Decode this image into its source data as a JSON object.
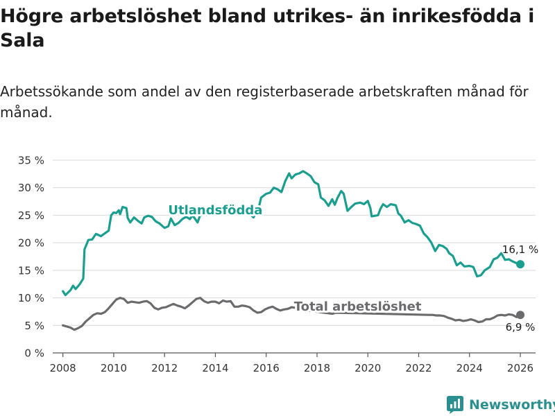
{
  "title": "Högre arbetslöshet bland utrikes- än inrikesfödda i Sala",
  "subtitle": "Arbetssökande som andel av den registerbaserade arbetskraften månad för månad.",
  "logo": {
    "text": "Newsworthy",
    "icon": "newsworthy-logo-icon"
  },
  "colors": {
    "utrikes": "#1a9e8f",
    "total": "#6b6b6e",
    "grid": "#d9d9d9",
    "axis": "#555555",
    "brand": "#2b8f8f"
  },
  "chart_data": {
    "type": "line",
    "title": "Högre arbetslöshet bland utrikes- än inrikesfödda i Sala",
    "xlabel": "",
    "ylabel": "",
    "xlim": [
      2007.6,
      2026.6
    ],
    "ylim": [
      0,
      35
    ],
    "grid": true,
    "x_ticks": [
      2008,
      2010,
      2012,
      2014,
      2016,
      2018,
      2020,
      2022,
      2024,
      2026
    ],
    "x_tick_labels": [
      "2008",
      "2010",
      "2012",
      "2014",
      "2016",
      "2018",
      "2020",
      "2022",
      "2024",
      "2026"
    ],
    "y_ticks": [
      0,
      5,
      10,
      15,
      20,
      25,
      30,
      35
    ],
    "y_tick_labels": [
      "0 %",
      "5 %",
      "10 %",
      "15 %",
      "20 %",
      "25 %",
      "30 %",
      "35 %"
    ],
    "series": [
      {
        "name": "Utlandsfödda",
        "label": "Utlandsfödda",
        "color": "#1a9e8f",
        "end_label": "16,1 %",
        "points": [
          [
            2008.0,
            11.2
          ],
          [
            2008.1,
            10.5
          ],
          [
            2008.3,
            11.4
          ],
          [
            2008.4,
            12.2
          ],
          [
            2008.5,
            11.6
          ],
          [
            2008.65,
            12.4
          ],
          [
            2008.8,
            13.5
          ],
          [
            2008.85,
            18.8
          ],
          [
            2009.0,
            20.5
          ],
          [
            2009.15,
            20.6
          ],
          [
            2009.3,
            21.6
          ],
          [
            2009.5,
            21.2
          ],
          [
            2009.65,
            21.7
          ],
          [
            2009.8,
            22.2
          ],
          [
            2009.9,
            25.0
          ],
          [
            2010.0,
            25.5
          ],
          [
            2010.1,
            25.4
          ],
          [
            2010.2,
            25.9
          ],
          [
            2010.25,
            25.2
          ],
          [
            2010.35,
            26.5
          ],
          [
            2010.5,
            26.3
          ],
          [
            2010.55,
            24.5
          ],
          [
            2010.65,
            23.7
          ],
          [
            2010.8,
            24.6
          ],
          [
            2010.95,
            24.0
          ],
          [
            2011.1,
            23.5
          ],
          [
            2011.2,
            24.6
          ],
          [
            2011.35,
            24.9
          ],
          [
            2011.5,
            24.7
          ],
          [
            2011.65,
            23.9
          ],
          [
            2011.8,
            23.5
          ],
          [
            2012.0,
            22.7
          ],
          [
            2012.15,
            23.0
          ],
          [
            2012.25,
            24.4
          ],
          [
            2012.4,
            23.2
          ],
          [
            2012.55,
            23.6
          ],
          [
            2012.7,
            24.3
          ],
          [
            2012.85,
            24.7
          ],
          [
            2013.0,
            24.3
          ],
          [
            2013.1,
            25.0
          ],
          [
            2013.3,
            23.7
          ],
          [
            2013.4,
            25.0
          ],
          [
            2015.3,
            25.5
          ],
          [
            2015.5,
            24.6
          ],
          [
            2015.7,
            26.2
          ],
          [
            2015.8,
            28.2
          ],
          [
            2016.0,
            28.9
          ],
          [
            2016.15,
            29.1
          ],
          [
            2016.3,
            30.0
          ],
          [
            2016.45,
            29.7
          ],
          [
            2016.6,
            29.2
          ],
          [
            2016.75,
            31.2
          ],
          [
            2016.9,
            32.6
          ],
          [
            2017.0,
            31.7
          ],
          [
            2017.15,
            32.4
          ],
          [
            2017.3,
            32.6
          ],
          [
            2017.45,
            33.0
          ],
          [
            2017.6,
            32.6
          ],
          [
            2017.75,
            32.1
          ],
          [
            2017.9,
            31.0
          ],
          [
            2018.05,
            30.6
          ],
          [
            2018.15,
            28.2
          ],
          [
            2018.3,
            27.7
          ],
          [
            2018.45,
            26.7
          ],
          [
            2018.6,
            27.9
          ],
          [
            2018.7,
            26.9
          ],
          [
            2018.8,
            28.1
          ],
          [
            2018.95,
            29.4
          ],
          [
            2019.05,
            28.9
          ],
          [
            2019.2,
            25.8
          ],
          [
            2019.35,
            26.5
          ],
          [
            2019.5,
            27.1
          ],
          [
            2019.7,
            27.3
          ],
          [
            2019.85,
            27.0
          ],
          [
            2020.0,
            27.6
          ],
          [
            2020.1,
            26.3
          ],
          [
            2020.15,
            24.8
          ],
          [
            2020.4,
            25.0
          ],
          [
            2020.5,
            26.2
          ],
          [
            2020.6,
            27.0
          ],
          [
            2020.75,
            26.5
          ],
          [
            2020.9,
            27.0
          ],
          [
            2021.1,
            26.8
          ],
          [
            2021.2,
            25.3
          ],
          [
            2021.3,
            24.9
          ],
          [
            2021.45,
            23.7
          ],
          [
            2021.6,
            24.1
          ],
          [
            2021.75,
            23.6
          ],
          [
            2021.9,
            23.4
          ],
          [
            2022.05,
            23.1
          ],
          [
            2022.2,
            21.7
          ],
          [
            2022.35,
            21.0
          ],
          [
            2022.5,
            20.0
          ],
          [
            2022.65,
            18.5
          ],
          [
            2022.8,
            19.6
          ],
          [
            2022.95,
            19.4
          ],
          [
            2023.1,
            18.9
          ],
          [
            2023.2,
            18.1
          ],
          [
            2023.35,
            17.6
          ],
          [
            2023.5,
            15.9
          ],
          [
            2023.65,
            16.4
          ],
          [
            2023.8,
            15.7
          ],
          [
            2024.0,
            15.8
          ],
          [
            2024.15,
            15.6
          ],
          [
            2024.3,
            13.9
          ],
          [
            2024.45,
            14.1
          ],
          [
            2024.6,
            15.0
          ],
          [
            2024.8,
            15.6
          ],
          [
            2024.95,
            17.0
          ],
          [
            2025.1,
            17.3
          ],
          [
            2025.25,
            18.1
          ],
          [
            2025.4,
            16.9
          ],
          [
            2025.55,
            17.0
          ],
          [
            2025.7,
            16.6
          ],
          [
            2025.85,
            16.3
          ],
          [
            2026.0,
            16.1
          ]
        ]
      },
      {
        "name": "Total arbetslöshet",
        "label": "Total arbetslöshet",
        "color": "#6b6b6e",
        "end_label": "6,9 %",
        "points": [
          [
            2008.0,
            5.0
          ],
          [
            2008.15,
            4.8
          ],
          [
            2008.3,
            4.6
          ],
          [
            2008.45,
            4.2
          ],
          [
            2008.6,
            4.5
          ],
          [
            2008.75,
            4.9
          ],
          [
            2008.9,
            5.7
          ],
          [
            2009.05,
            6.3
          ],
          [
            2009.2,
            6.9
          ],
          [
            2009.35,
            7.2
          ],
          [
            2009.5,
            7.1
          ],
          [
            2009.65,
            7.4
          ],
          [
            2009.8,
            8.1
          ],
          [
            2009.95,
            8.9
          ],
          [
            2010.1,
            9.7
          ],
          [
            2010.25,
            10.0
          ],
          [
            2010.4,
            9.8
          ],
          [
            2010.55,
            9.1
          ],
          [
            2010.7,
            9.3
          ],
          [
            2010.85,
            9.2
          ],
          [
            2011.0,
            9.1
          ],
          [
            2011.15,
            9.3
          ],
          [
            2011.3,
            9.4
          ],
          [
            2011.45,
            9.0
          ],
          [
            2011.6,
            8.2
          ],
          [
            2011.75,
            7.9
          ],
          [
            2011.9,
            8.2
          ],
          [
            2012.05,
            8.3
          ],
          [
            2012.2,
            8.6
          ],
          [
            2012.35,
            8.9
          ],
          [
            2012.5,
            8.6
          ],
          [
            2012.65,
            8.4
          ],
          [
            2012.8,
            8.1
          ],
          [
            2012.95,
            8.6
          ],
          [
            2013.1,
            9.2
          ],
          [
            2013.25,
            9.8
          ],
          [
            2013.4,
            10.0
          ],
          [
            2013.55,
            9.4
          ],
          [
            2013.7,
            9.1
          ],
          [
            2013.85,
            9.3
          ],
          [
            2014.0,
            9.3
          ],
          [
            2014.15,
            9.0
          ],
          [
            2014.3,
            9.5
          ],
          [
            2014.45,
            9.3
          ],
          [
            2014.6,
            9.4
          ],
          [
            2014.75,
            8.4
          ],
          [
            2014.9,
            8.4
          ],
          [
            2015.05,
            8.6
          ],
          [
            2015.2,
            8.5
          ],
          [
            2015.35,
            8.3
          ],
          [
            2015.5,
            7.7
          ],
          [
            2015.65,
            7.3
          ],
          [
            2015.8,
            7.4
          ],
          [
            2015.95,
            7.9
          ],
          [
            2016.1,
            8.2
          ],
          [
            2016.25,
            8.4
          ],
          [
            2016.4,
            8.0
          ],
          [
            2016.55,
            7.7
          ],
          [
            2016.7,
            7.9
          ],
          [
            2016.85,
            8.0
          ],
          [
            2017.0,
            8.3
          ],
          [
            2017.15,
            8.2
          ],
          [
            2017.3,
            7.9
          ],
          [
            2018.6,
            7.1
          ],
          [
            2018.75,
            7.3
          ],
          [
            2022.4,
            6.9
          ],
          [
            2022.55,
            6.9
          ],
          [
            2022.7,
            6.8
          ],
          [
            2022.85,
            6.8
          ],
          [
            2023.0,
            6.7
          ],
          [
            2023.15,
            6.4
          ],
          [
            2023.3,
            6.2
          ],
          [
            2023.45,
            5.9
          ],
          [
            2023.6,
            6.0
          ],
          [
            2023.75,
            5.8
          ],
          [
            2023.9,
            5.9
          ],
          [
            2024.05,
            6.1
          ],
          [
            2024.2,
            5.9
          ],
          [
            2024.35,
            5.6
          ],
          [
            2024.5,
            5.7
          ],
          [
            2024.65,
            6.1
          ],
          [
            2024.8,
            6.1
          ],
          [
            2024.95,
            6.4
          ],
          [
            2025.1,
            6.8
          ],
          [
            2025.25,
            6.9
          ],
          [
            2025.4,
            6.8
          ],
          [
            2025.55,
            7.0
          ],
          [
            2025.7,
            6.9
          ],
          [
            2025.85,
            6.5
          ],
          [
            2026.0,
            6.9
          ]
        ]
      }
    ]
  }
}
